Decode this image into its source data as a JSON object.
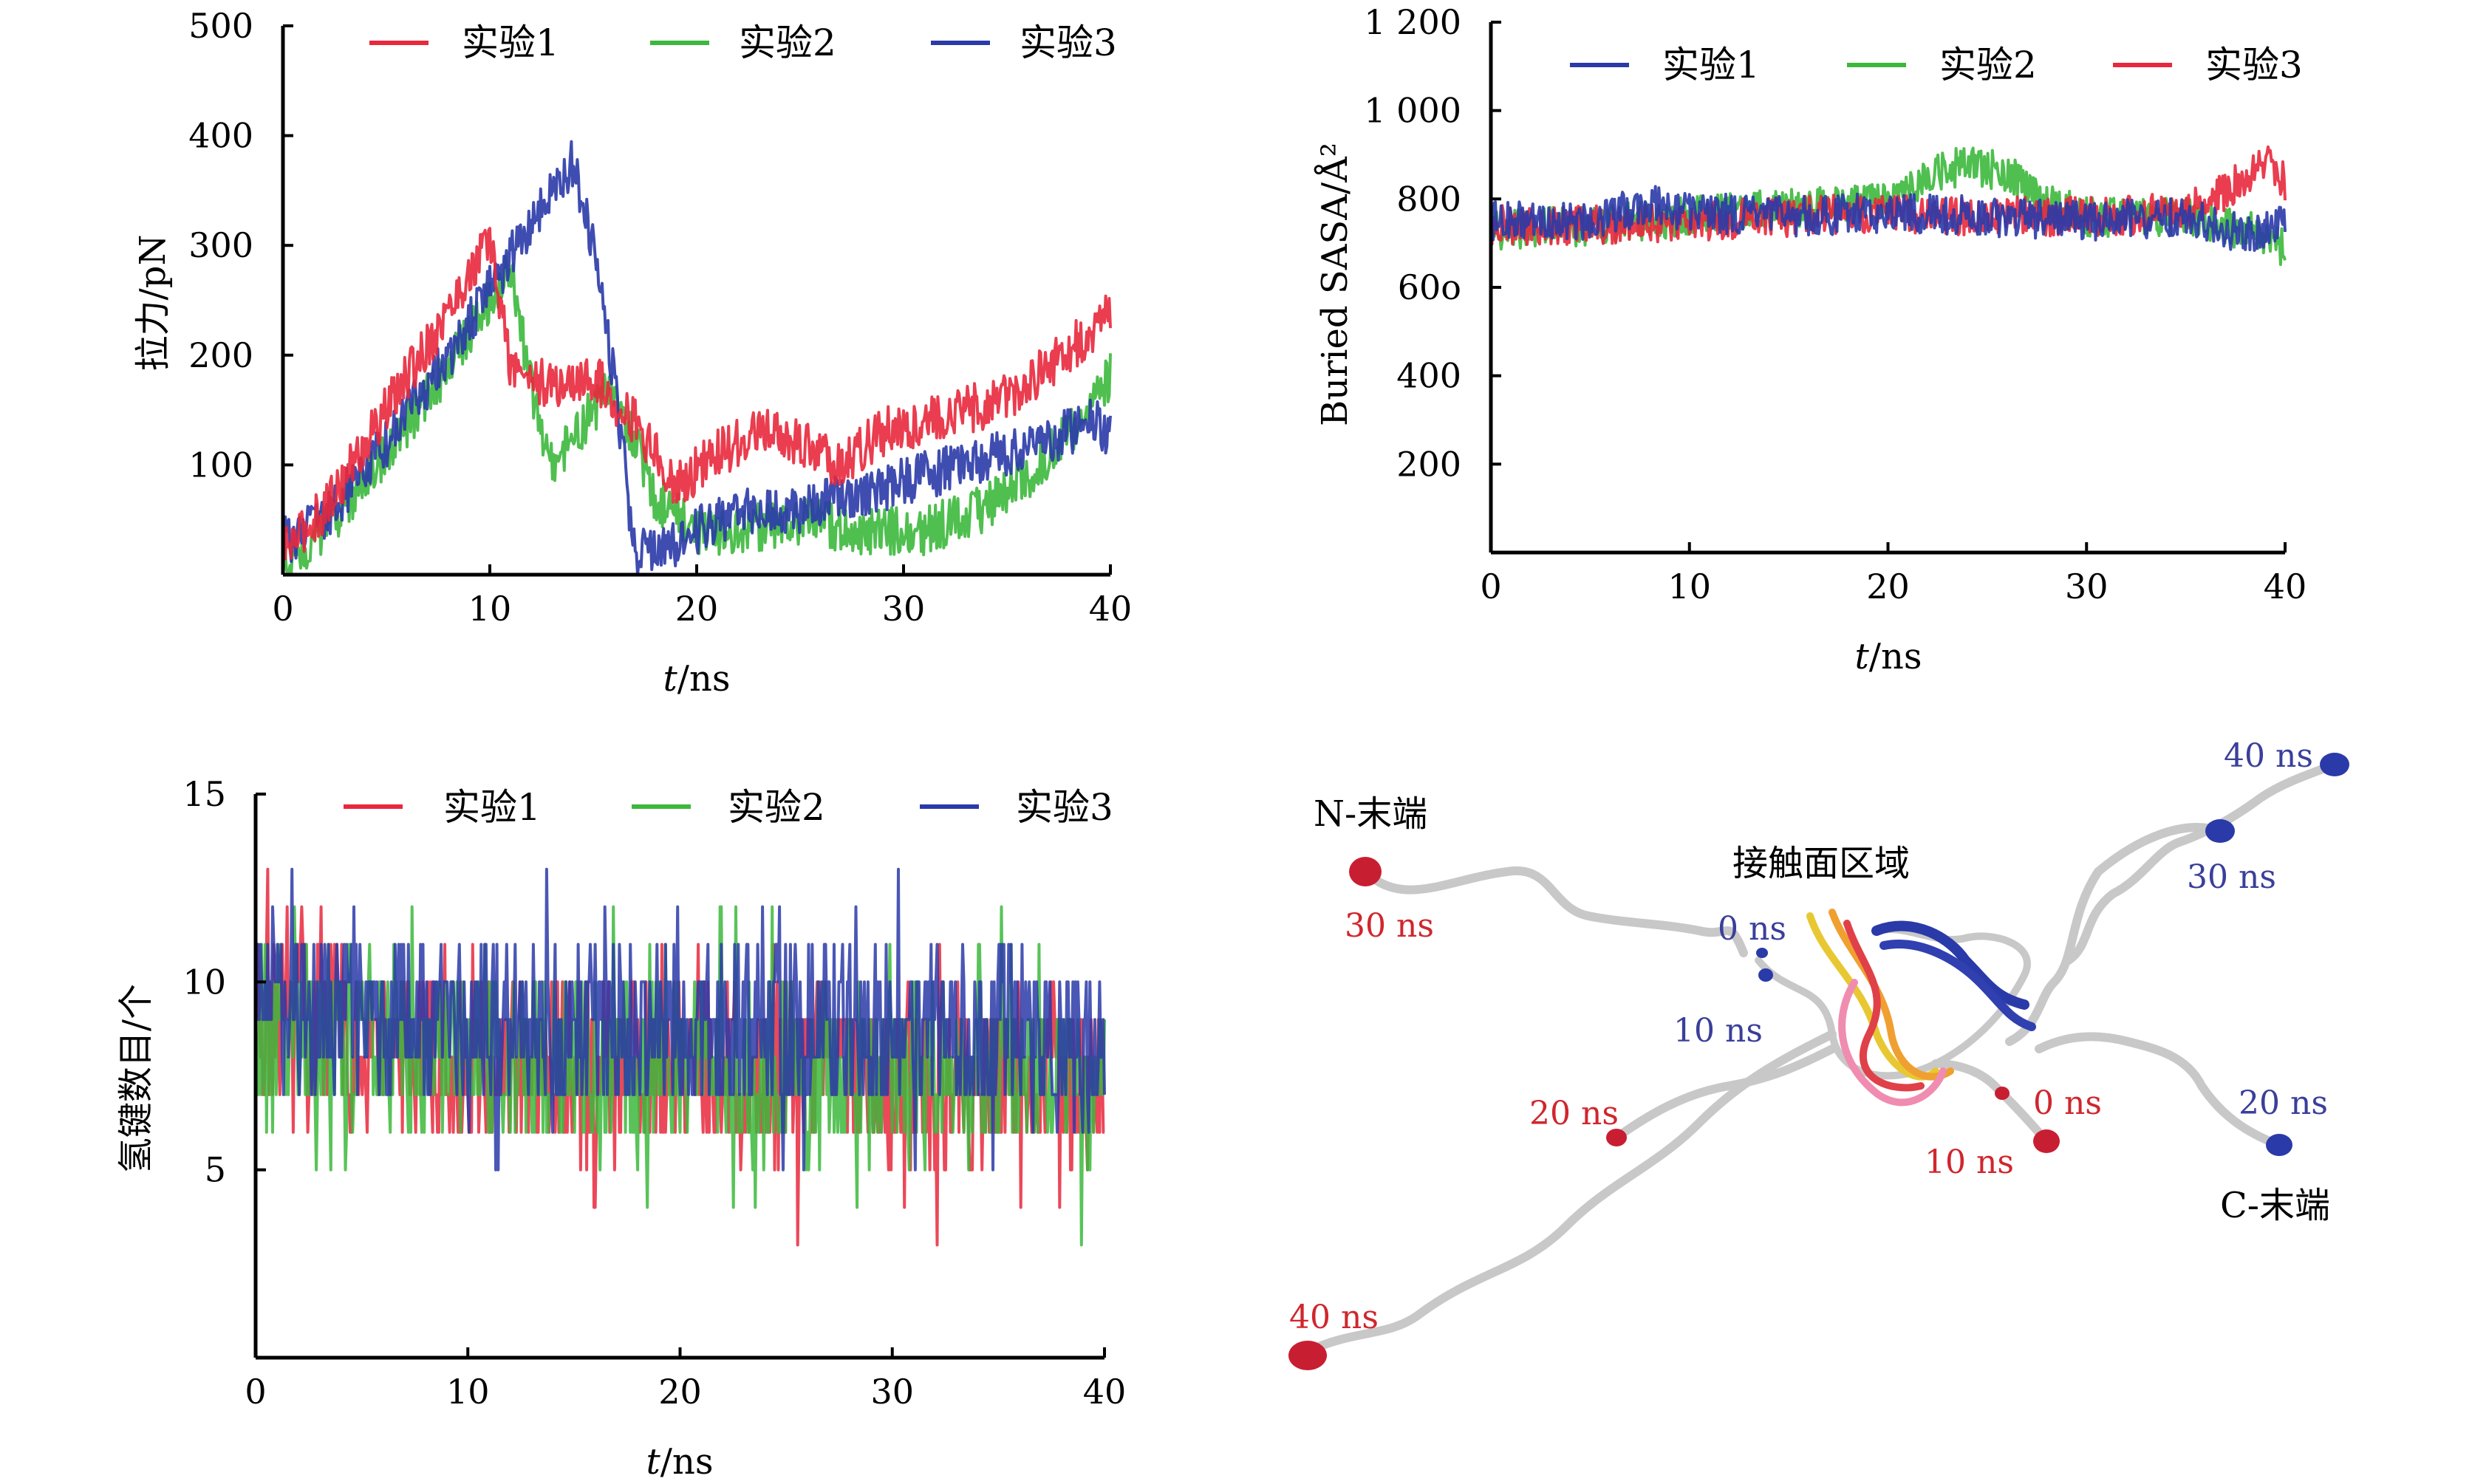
{
  "colors": {
    "red": "#e8283c",
    "green": "#3cb83c",
    "blue": "#2a3aa8",
    "label_red": "#d0262d",
    "label_blue": "#3a3f9a"
  },
  "chart_data": [
    {
      "id": "force",
      "type": "line",
      "ylabel": "拉力/pN",
      "xlabel_italic": "t",
      "xlabel_unit": "/ns",
      "xlim": [
        0,
        40
      ],
      "ylim": [
        0,
        500
      ],
      "xticks": [
        0,
        10,
        20,
        30,
        40
      ],
      "yticks": [
        100,
        200,
        300,
        400,
        500
      ],
      "ytick_labels": [
        "100",
        "200",
        "300",
        "400",
        "500"
      ],
      "legend": "top",
      "series": [
        {
          "name": "实验1",
          "color": "#e8283c",
          "x": [
            0,
            2,
            5,
            8,
            10,
            11,
            13,
            15,
            17,
            19,
            21,
            23,
            25,
            27,
            29,
            31,
            33,
            35,
            37,
            39,
            40
          ],
          "y": [
            20,
            60,
            150,
            240,
            305,
            190,
            170,
            180,
            140,
            80,
            110,
            130,
            120,
            100,
            130,
            140,
            150,
            160,
            190,
            220,
            240
          ]
        },
        {
          "name": "实验2",
          "color": "#3cb83c",
          "x": [
            0,
            2,
            5,
            8,
            11,
            12,
            13,
            15,
            16,
            18,
            20,
            22,
            25,
            28,
            31,
            34,
            36,
            38,
            40
          ],
          "y": [
            10,
            40,
            110,
            190,
            280,
            170,
            100,
            150,
            170,
            70,
            40,
            40,
            50,
            40,
            40,
            60,
            90,
            130,
            180
          ]
        },
        {
          "name": "实验3",
          "color": "#2a3aa8",
          "x": [
            0,
            2,
            5,
            8,
            10,
            12,
            14,
            15,
            16,
            17,
            19,
            21,
            23,
            25,
            27,
            29,
            31,
            33,
            35,
            37,
            39,
            40
          ],
          "y": [
            30,
            50,
            120,
            200,
            260,
            320,
            375,
            300,
            180,
            20,
            30,
            50,
            60,
            60,
            70,
            80,
            90,
            100,
            110,
            120,
            140,
            130
          ]
        }
      ]
    },
    {
      "id": "sasa",
      "type": "line",
      "ylabel": "Buried SASA/Å²",
      "xlabel_italic": "t",
      "xlabel_unit": "/ns",
      "xlim": [
        0,
        40
      ],
      "ylim": [
        0,
        1200
      ],
      "xticks": [
        0,
        10,
        20,
        30,
        40
      ],
      "yticks": [
        200,
        400,
        600,
        800,
        1000,
        1200
      ],
      "ytick_labels": [
        "200",
        "400",
        "60o",
        "800",
        "1 000",
        "1 200"
      ],
      "legend": "top",
      "series": [
        {
          "name": "实验1",
          "color": "#2a3aa8",
          "x": [
            0,
            5,
            8,
            10,
            15,
            20,
            25,
            30,
            35,
            38,
            40
          ],
          "y": [
            750,
            750,
            790,
            770,
            760,
            770,
            760,
            750,
            760,
            720,
            740
          ]
        },
        {
          "name": "实验2",
          "color": "#3cb83c",
          "x": [
            0,
            5,
            10,
            15,
            20,
            22,
            24,
            26,
            28,
            30,
            35,
            38,
            40
          ],
          "y": [
            730,
            740,
            760,
            780,
            790,
            850,
            880,
            860,
            790,
            760,
            760,
            730,
            690
          ]
        },
        {
          "name": "实验3",
          "color": "#e8283c",
          "x": [
            0,
            5,
            10,
            15,
            20,
            25,
            30,
            35,
            37,
            39,
            40
          ],
          "y": [
            740,
            740,
            750,
            760,
            770,
            760,
            760,
            770,
            820,
            880,
            840
          ]
        }
      ]
    },
    {
      "id": "hbond",
      "type": "line",
      "ylabel": "氢键数目/个",
      "xlabel_italic": "t",
      "xlabel_unit": "/ns",
      "xlim": [
        0,
        40
      ],
      "ylim": [
        0,
        15
      ],
      "xticks": [
        0,
        10,
        20,
        30,
        40
      ],
      "yticks": [
        5,
        10,
        15
      ],
      "ytick_labels": [
        "5",
        "10",
        "15"
      ],
      "legend": "top",
      "series": [
        {
          "name": "实验1",
          "color": "#e8283c",
          "x": [
            0,
            5,
            10,
            15,
            20,
            25,
            30,
            35,
            40
          ],
          "y": [
            9,
            8.5,
            8,
            8,
            7.8,
            7.5,
            7.5,
            7.5,
            7.3
          ]
        },
        {
          "name": "实验2",
          "color": "#3cb83c",
          "x": [
            0,
            5,
            10,
            15,
            20,
            25,
            30,
            35,
            40
          ],
          "y": [
            9,
            8.5,
            8.2,
            8,
            7.8,
            7.6,
            7.5,
            7.4,
            7.3
          ]
        },
        {
          "name": "实验3",
          "color": "#2a3aa8",
          "x": [
            0,
            5,
            10,
            15,
            20,
            25,
            30,
            35,
            40
          ],
          "y": [
            9.5,
            9.2,
            9,
            8.8,
            8.7,
            8.8,
            8.7,
            8.6,
            8.2
          ]
        }
      ]
    }
  ],
  "molecule": {
    "n_term": "N-末端",
    "c_term": "C-末端",
    "contact": "接触面区域",
    "red_labels": [
      "30 ns",
      "20 ns",
      "40 ns",
      "10 ns",
      "0 ns"
    ],
    "blue_labels": [
      "0 ns",
      "10 ns",
      "40 ns",
      "30 ns",
      "20 ns"
    ]
  }
}
